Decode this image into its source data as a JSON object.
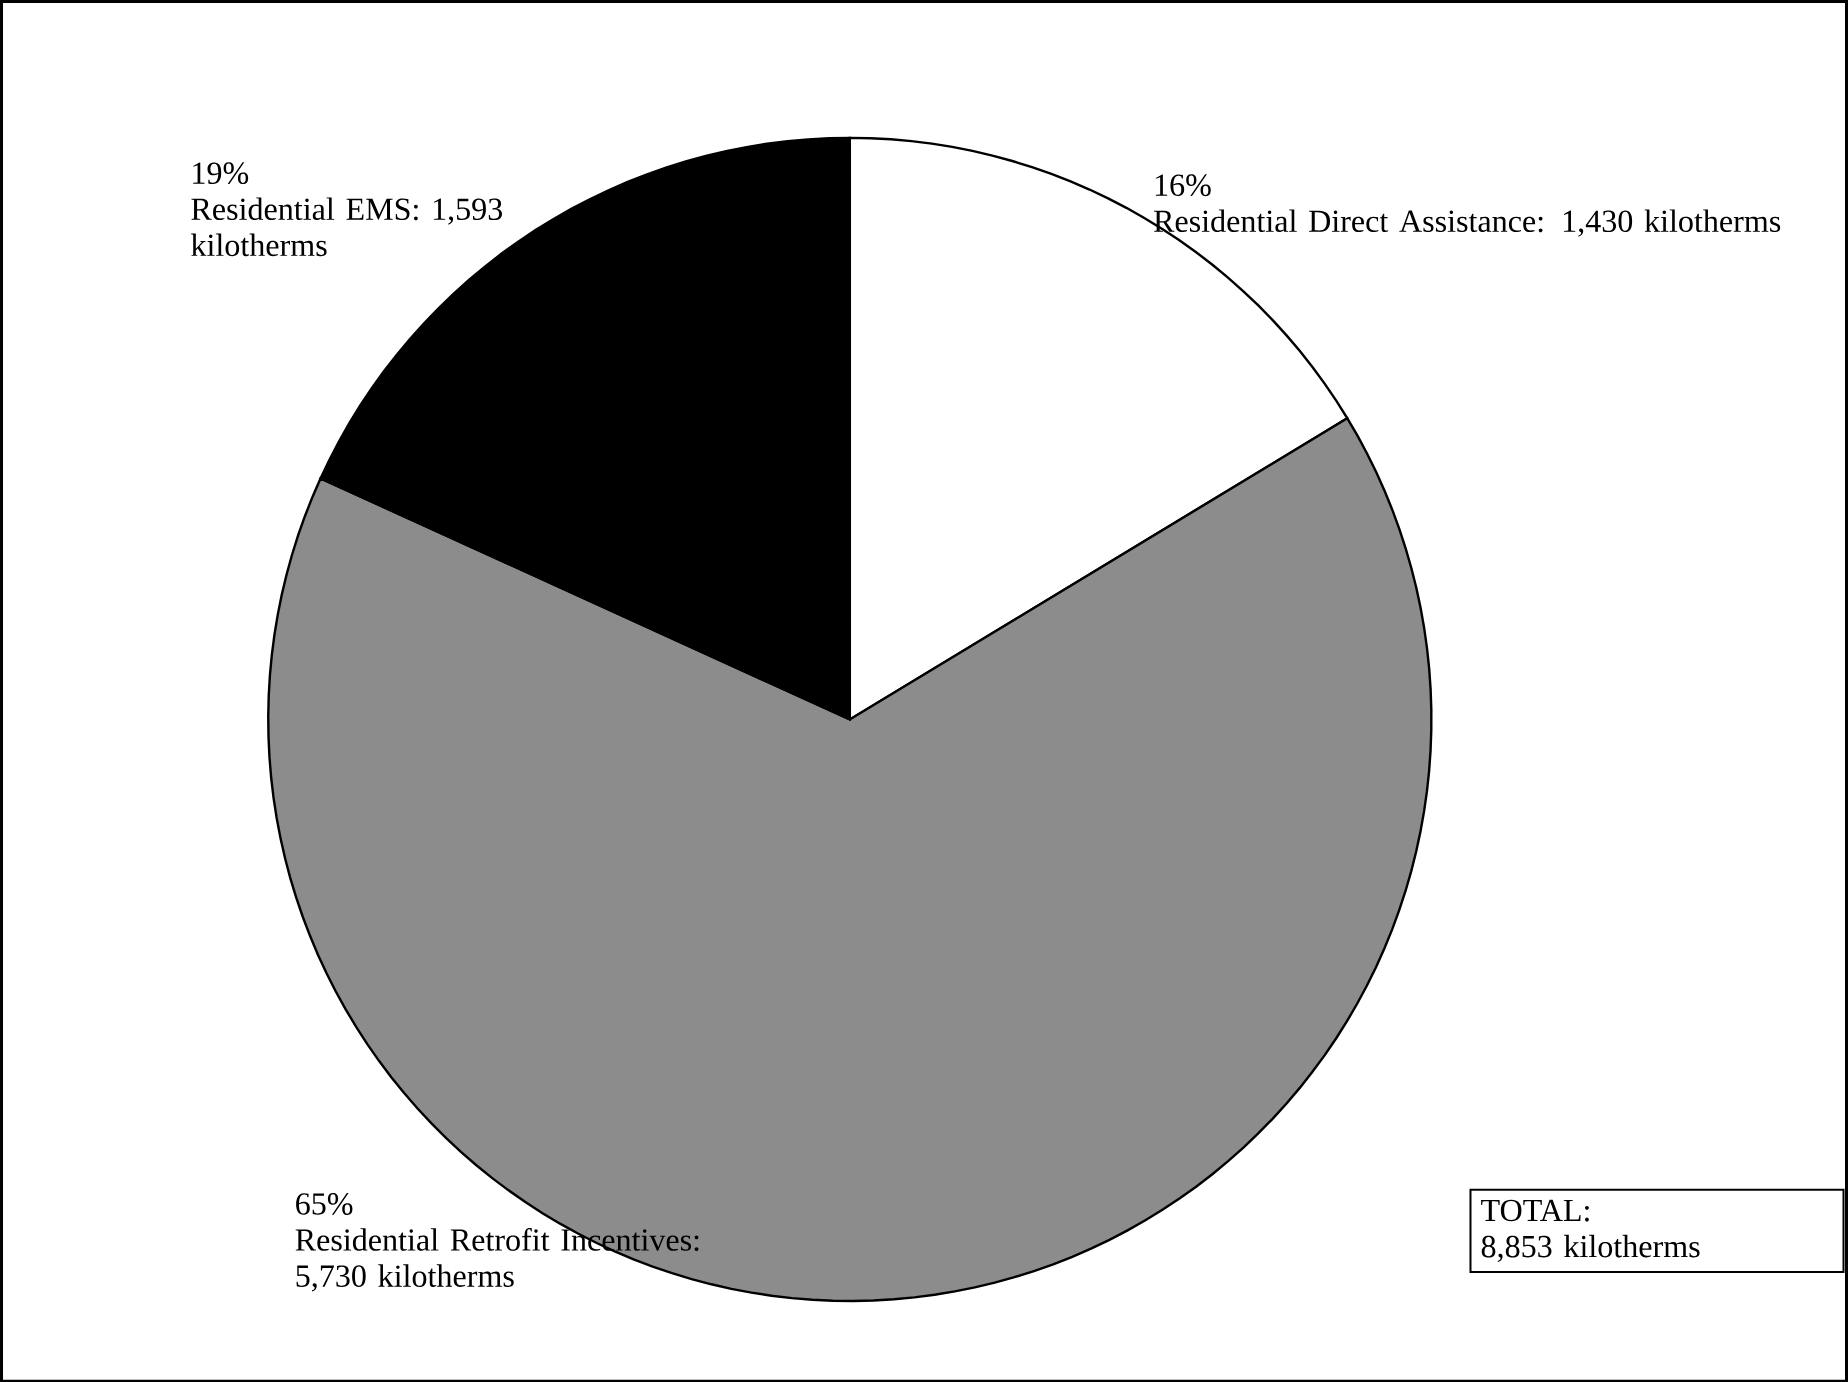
{
  "chart_data": {
    "type": "pie",
    "categories": [
      "Residential Direct Assistance",
      "Residential Retrofit Incentives",
      "Residential EMS"
    ],
    "values": [
      1430,
      5730,
      1593
    ],
    "value_labels": [
      ": 1,430 kilotherms",
      ": 5,730 kilotherms",
      ": 1,593 kilotherms"
    ],
    "colors": [
      "#ffffff",
      "#8c8c8c",
      "#000000"
    ],
    "annotations": [
      {
        "text": "16%",
        "x": "Residential Direct Assistance"
      },
      {
        "text": "65%",
        "x": "Residential Retrofit Incentives"
      },
      {
        "text": "19%",
        "x": "Residential EMS"
      },
      "TOTAL:",
      "8,853 kilotherms"
    ]
  }
}
